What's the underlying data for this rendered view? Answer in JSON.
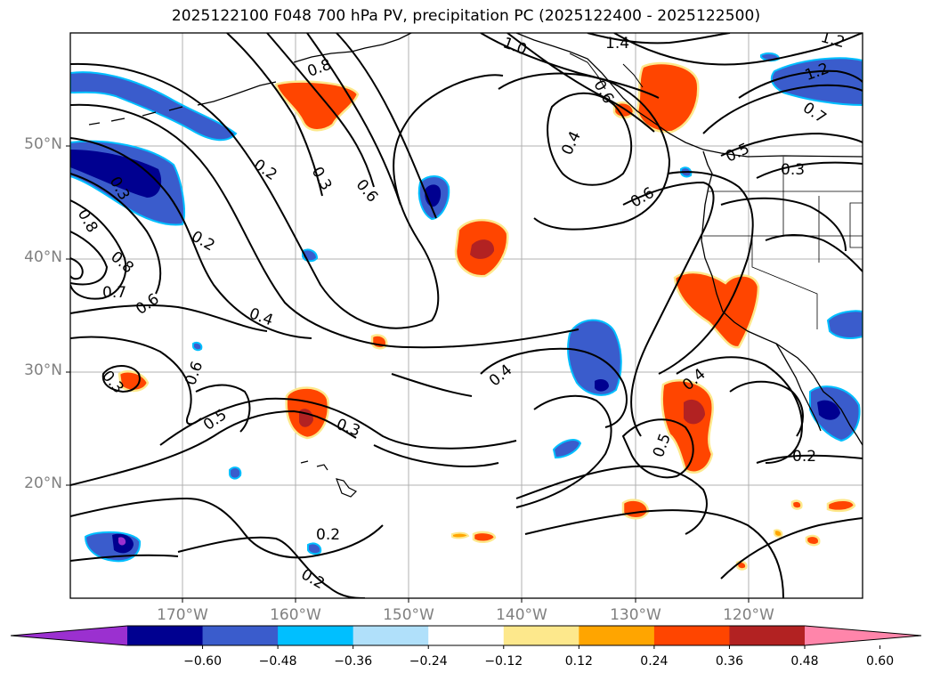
{
  "title": "2025122100 F048 700 hPa PV, precipitation PC (2025122400 - 2025122500)",
  "map": {
    "projection": "cylindrical",
    "lon_range": [
      -180,
      -110
    ],
    "lat_range": [
      10,
      60
    ],
    "lat_labels": [
      "50°N",
      "40°N",
      "30°N",
      "20°N"
    ],
    "lon_labels": [
      "170°W",
      "160°W",
      "150°W",
      "140°W",
      "130°W",
      "120°W"
    ],
    "contour_field": "700 hPa PV",
    "contour_labels": [
      "1.0",
      "1.4",
      "1.2",
      "1.2",
      "0.8",
      "0.4",
      "0.7",
      "0.5",
      "0.3",
      "0.6",
      "0.2",
      "0.3",
      "0.6",
      "0.2",
      "0.8",
      "0.8",
      "0.7",
      "0.6",
      "0.4",
      "0.6",
      "0.5",
      "0.3",
      "0.4",
      "0.4",
      "0.5",
      "0.3",
      "0.2",
      "0.2",
      "0.2",
      "0.3",
      "0.6"
    ],
    "shaded_field": "precipitation PC"
  },
  "colorbar": {
    "colors": [
      "#9b30d0",
      "#000090",
      "#3a5ccc",
      "#00bfff",
      "#b0e0fa",
      "#ffffff",
      "#fde88c",
      "#ffa500",
      "#ff4500",
      "#b22222",
      "#ff85aa"
    ],
    "tick_labels": [
      "−0.60",
      "−0.48",
      "−0.36",
      "−0.24",
      "−0.12",
      "0.12",
      "0.24",
      "0.36",
      "0.48",
      "0.60"
    ]
  },
  "colors": {
    "frame": "#000000",
    "grid": "#b0b0b0",
    "axis_label": "#808080",
    "contour": "#000000"
  }
}
